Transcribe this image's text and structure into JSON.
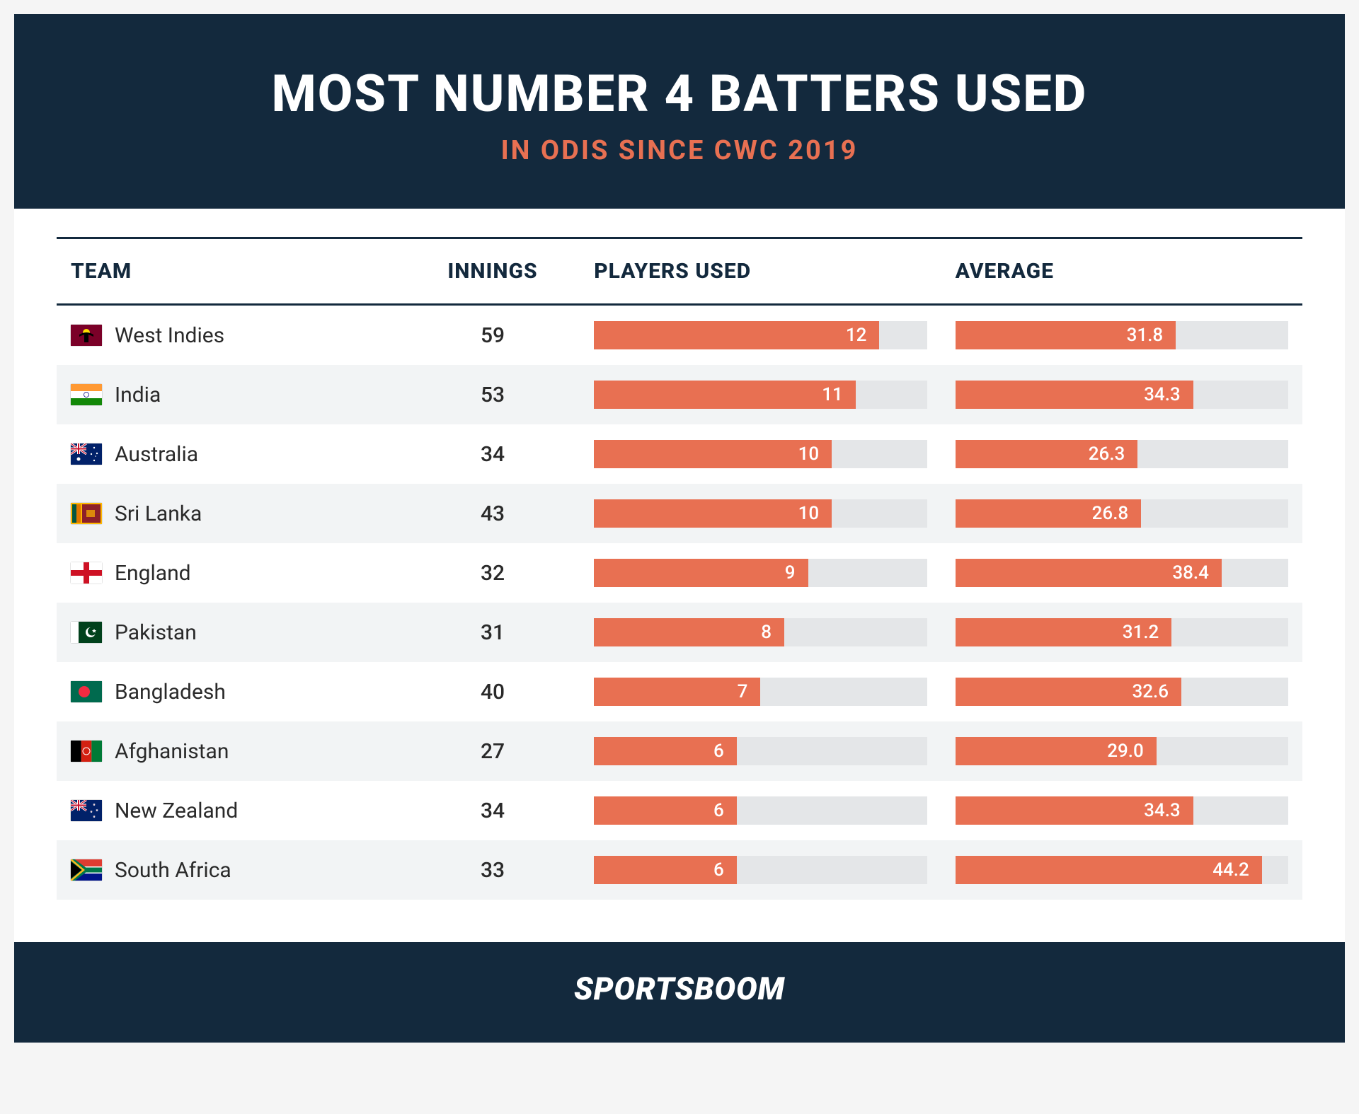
{
  "colors": {
    "header_bg": "#13293d",
    "title_color": "#ffffff",
    "subtitle_color": "#e87052",
    "bar_fill": "#e87052",
    "bar_track": "#e4e6e8",
    "footer_bg": "#13293d",
    "logo_color": "#ffffff"
  },
  "header": {
    "title": "MOST NUMBER 4 BATTERS USED",
    "subtitle": "IN ODIS SINCE CWC 2019"
  },
  "table": {
    "columns": [
      "TEAM",
      "INNINGS",
      "PLAYERS USED",
      "AVERAGE"
    ],
    "col_widths": [
      "28%",
      "14%",
      "29%",
      "29%"
    ],
    "players_max": 14,
    "average_max": 48,
    "rows": [
      {
        "team": "West Indies",
        "flag": "WI",
        "innings": 59,
        "players": 12,
        "average": 31.8
      },
      {
        "team": "India",
        "flag": "IN",
        "innings": 53,
        "players": 11,
        "average": 34.3
      },
      {
        "team": "Australia",
        "flag": "AU",
        "innings": 34,
        "players": 10,
        "average": 26.3
      },
      {
        "team": "Sri Lanka",
        "flag": "LK",
        "innings": 43,
        "players": 10,
        "average": 26.8
      },
      {
        "team": "England",
        "flag": "EN",
        "innings": 32,
        "players": 9,
        "average": 38.4
      },
      {
        "team": "Pakistan",
        "flag": "PK",
        "innings": 31,
        "players": 8,
        "average": 31.2
      },
      {
        "team": "Bangladesh",
        "flag": "BD",
        "innings": 40,
        "players": 7,
        "average": 32.6
      },
      {
        "team": "Afghanistan",
        "flag": "AF",
        "innings": 27,
        "players": 6,
        "average": 29.0
      },
      {
        "team": "New Zealand",
        "flag": "NZ",
        "innings": 34,
        "players": 6,
        "average": 34.3
      },
      {
        "team": "South Africa",
        "flag": "ZA",
        "innings": 33,
        "players": 6,
        "average": 44.2
      }
    ]
  },
  "footer": {
    "logo": "SPORTSBOOM"
  },
  "flags": {
    "WI": "<svg viewBox='0 0 44 30'><rect width='44' height='30' fill='#7b0028'/><circle cx='22' cy='11' r='5' fill='#fedd00'/><rect x='19' y='14' width='6' height='11' fill='#000'/><path d='M12 14 Q22 8 32 14 L32 17 Q22 11 12 17 Z' fill='#000'/></svg>",
    "IN": "<svg viewBox='0 0 44 30'><rect width='44' height='10' fill='#ff9933'/><rect y='10' width='44' height='10' fill='#fff'/><rect y='20' width='44' height='10' fill='#138808'/><circle cx='22' cy='15' r='3.5' fill='none' stroke='#000080' stroke-width='0.8'/></svg>",
    "AU": "<svg viewBox='0 0 44 30'><rect width='44' height='30' fill='#012169'/><rect width='22' height='15' fill='#012169'/><path d='M0 0 L22 15 M22 0 L0 15' stroke='#fff' stroke-width='3'/><path d='M0 0 L22 15 M22 0 L0 15' stroke='#c8102e' stroke-width='1.2'/><path d='M11 0 V15 M0 7.5 H22' stroke='#fff' stroke-width='4'/><path d='M11 0 V15 M0 7.5 H22' stroke='#c8102e' stroke-width='2'/><circle cx='11' cy='22' r='2.5' fill='#fff'/><circle cx='33' cy='6' r='1.2' fill='#fff'/><circle cx='37' cy='14' r='1.2' fill='#fff'/><circle cx='33' cy='24' r='1.2' fill='#fff'/><circle cx='29' cy='15' r='1.2' fill='#fff'/><circle cx='35' cy='18' r='0.8' fill='#fff'/></svg>",
    "LK": "<svg viewBox='0 0 44 30'><rect width='44' height='30' fill='#feb700'/><rect x='2' y='2' width='6' height='26' fill='#005641'/><rect x='8' y='2' width='6' height='26' fill='#df7500'/><rect x='16' y='2' width='26' height='26' fill='#8d2029'/><rect x='22' y='10' width='12' height='10' fill='#feb700' opacity='0.7'/></svg>",
    "EN": "<svg viewBox='0 0 44 30'><rect width='44' height='30' fill='#fff'/><rect x='18' width='8' height='30' fill='#ce1124'/><rect y='11' width='44' height='8' fill='#ce1124'/></svg>",
    "PK": "<svg viewBox='0 0 44 30'><rect width='44' height='30' fill='#01411c'/><rect width='11' height='30' fill='#fff'/><circle cx='28' cy='15' r='7' fill='#fff'/><circle cx='30' cy='13.5' r='6' fill='#01411c'/><polygon points='33,10 34,12 36,12 34.5,13.5 35,15.5 33,14.5 31,15.5 31.5,13.5 30,12 32,12' fill='#fff'/></svg>",
    "BD": "<svg viewBox='0 0 44 30'><rect width='44' height='30' fill='#006a4e'/><circle cx='19' cy='15' r='8' fill='#f42a41'/></svg>",
    "AF": "<svg viewBox='0 0 44 30'><rect width='14.67' height='30' fill='#000'/><rect x='14.67' width='14.67' height='30' fill='#d32011'/><rect x='29.33' width='14.67' height='30' fill='#007a36'/><circle cx='22' cy='15' r='5' fill='none' stroke='#fff' stroke-width='1'/></svg>",
    "NZ": "<svg viewBox='0 0 44 30'><rect width='44' height='30' fill='#012169'/><path d='M0 0 L22 15 M22 0 L0 15' stroke='#fff' stroke-width='3'/><path d='M0 0 L22 15 M22 0 L0 15' stroke='#c8102e' stroke-width='1.2'/><path d='M11 0 V15 M0 7.5 H22' stroke='#fff' stroke-width='4'/><path d='M11 0 V15 M0 7.5 H22' stroke='#c8102e' stroke-width='2'/><polygon points='33,5 34,8 31.5,6 34.5,6 32,8' fill='#c8102e' stroke='#fff' stroke-width='0.5'/><polygon points='37,13 38,16 35.5,14 38.5,14 36,16' fill='#c8102e' stroke='#fff' stroke-width='0.5'/><polygon points='29,15 30,18 27.5,16 30.5,16 28,18' fill='#c8102e' stroke='#fff' stroke-width='0.5'/><polygon points='33,22 34,25 31.5,23 34.5,23 32,25' fill='#c8102e' stroke='#fff' stroke-width='0.5'/></svg>",
    "ZA": "<svg viewBox='0 0 44 30'><rect width='44' height='30' fill='#fff'/><rect width='44' height='10' fill='#e03c31'/><rect y='20' width='44' height='10' fill='#001489'/><path d='M0 0 L18 15 L0 30 Z' fill='#000'/><path d='M0 0 L18 15 L0 30' fill='none' stroke='#ffb81c' stroke-width='3'/><path d='M0 2 L16 15 L0 28 M0 10 H44 M0 20 H44' fill='none'/><path d='M0 0 L20 15 L0 30 M16 15 H44' fill='none' stroke='#fff' stroke-width='5'/><path d='M0 0 L20 15 L0 30 M16 15 H44' fill='none' stroke='#007749' stroke-width='7'/><path d='M0 3 L15 15 L0 27 Z' fill='#000'/><path d='M0 0 L18 15 L0 30' fill='none' stroke='#ffb81c' stroke-width='2.5'/><path d='M0 0 L0 3 L15 15 L0 27 L0 30' fill='#000'/></svg>"
  }
}
